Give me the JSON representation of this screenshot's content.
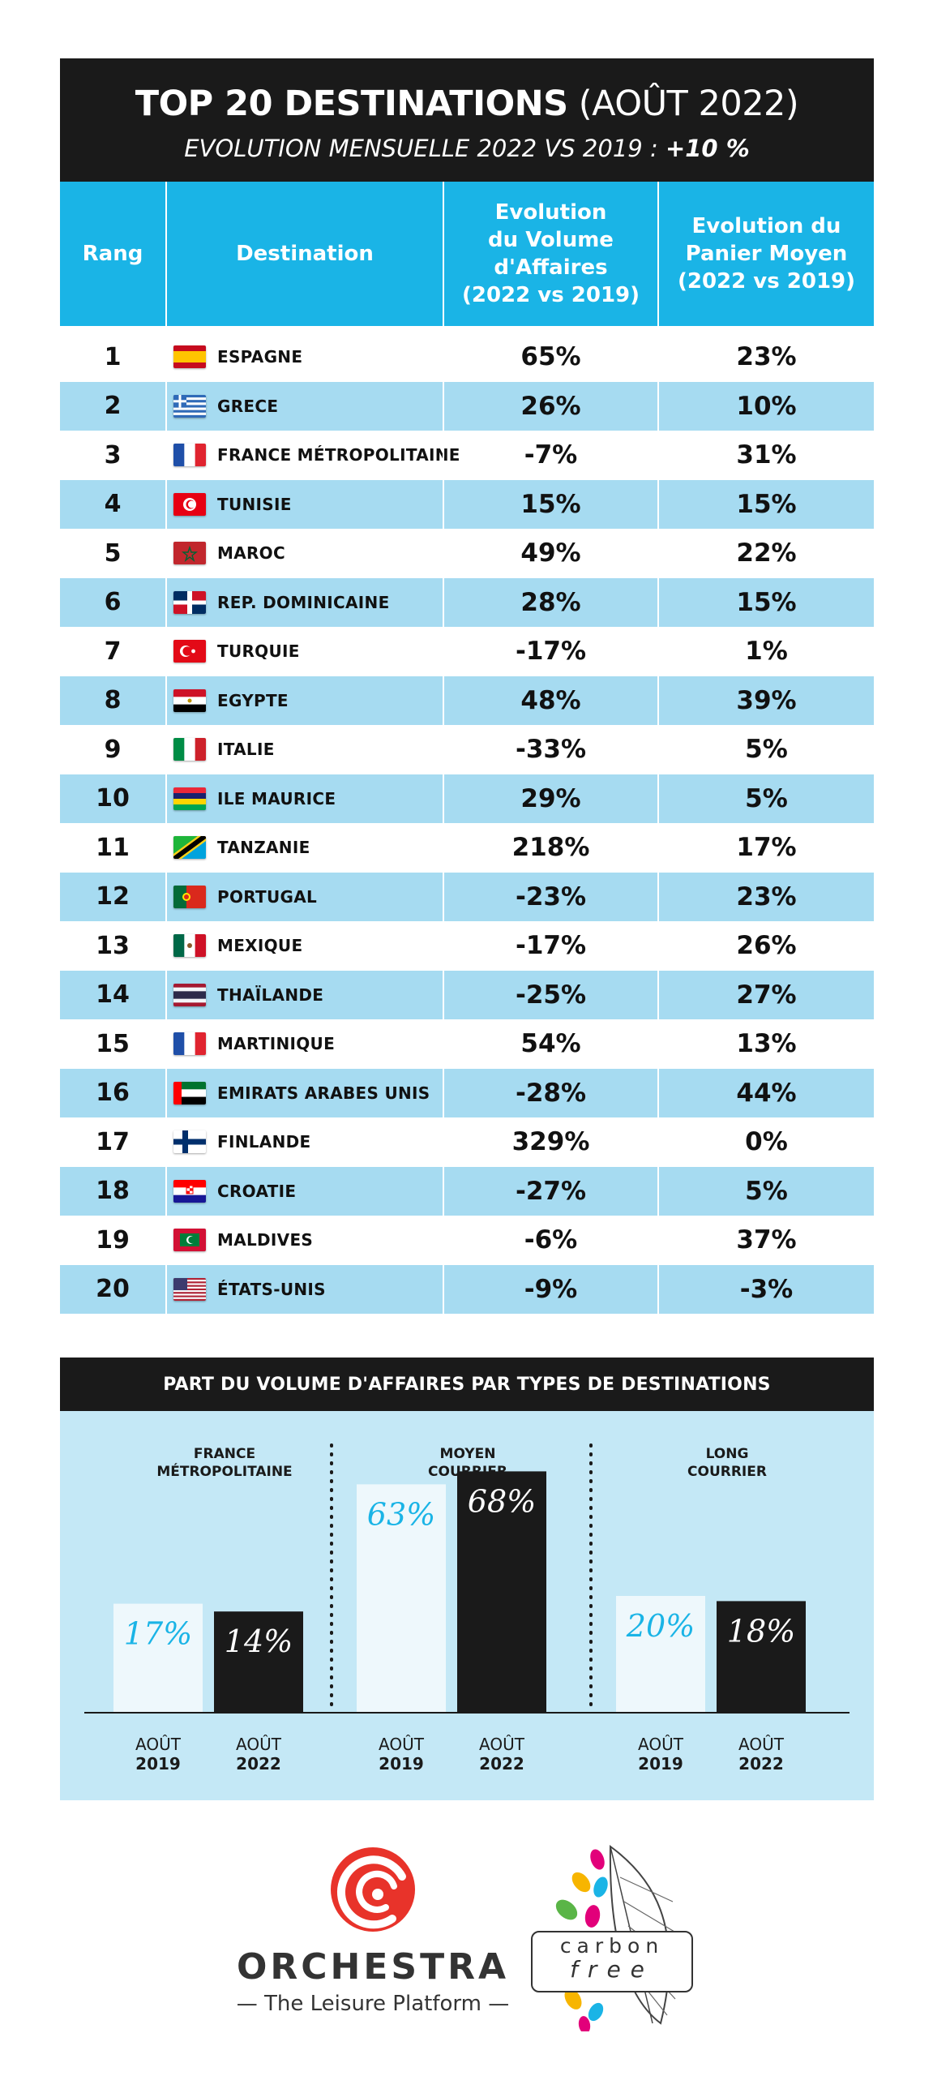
{
  "header": {
    "title_bold": "TOP 20 DESTINATIONS",
    "title_rest": "(AOÛT 2022)",
    "subtitle": "EVOLUTION MENSUELLE 2022 VS 2019 :",
    "subtitle_value": "+10 %"
  },
  "table": {
    "columns": {
      "rank": "Rang",
      "destination": "Destination",
      "volume": [
        "Evolution",
        "du Volume",
        "d'Affaires",
        "(2022 vs 2019)"
      ],
      "panier": [
        "Evolution du",
        "Panier Moyen",
        "(2022 vs 2019)"
      ]
    },
    "rows": [
      {
        "rank": "1",
        "destination": "ESPAGNE",
        "flag": "spain-flag-icon",
        "volume": "65%",
        "panier": "23%"
      },
      {
        "rank": "2",
        "destination": "GRECE",
        "flag": "greece-flag-icon",
        "volume": "26%",
        "panier": "10%"
      },
      {
        "rank": "3",
        "destination": "FRANCE MÉTROPOLITAINE",
        "flag": "france-flag-icon",
        "volume": "-7%",
        "panier": "31%"
      },
      {
        "rank": "4",
        "destination": "TUNISIE",
        "flag": "tunisia-flag-icon",
        "volume": "15%",
        "panier": "15%"
      },
      {
        "rank": "5",
        "destination": "MAROC",
        "flag": "morocco-flag-icon",
        "volume": "49%",
        "panier": "22%"
      },
      {
        "rank": "6",
        "destination": "REP. DOMINICAINE",
        "flag": "dominican-republic-flag-icon",
        "volume": "28%",
        "panier": "15%"
      },
      {
        "rank": "7",
        "destination": "TURQUIE",
        "flag": "turkey-flag-icon",
        "volume": "-17%",
        "panier": "1%"
      },
      {
        "rank": "8",
        "destination": "EGYPTE",
        "flag": "egypt-flag-icon",
        "volume": "48%",
        "panier": "39%"
      },
      {
        "rank": "9",
        "destination": "ITALIE",
        "flag": "italy-flag-icon",
        "volume": "-33%",
        "panier": "5%"
      },
      {
        "rank": "10",
        "destination": "ILE MAURICE",
        "flag": "mauritius-flag-icon",
        "volume": "29%",
        "panier": "5%"
      },
      {
        "rank": "11",
        "destination": "TANZANIE",
        "flag": "tanzania-flag-icon",
        "volume": "218%",
        "panier": "17%"
      },
      {
        "rank": "12",
        "destination": "PORTUGAL",
        "flag": "portugal-flag-icon",
        "volume": "-23%",
        "panier": "23%"
      },
      {
        "rank": "13",
        "destination": "MEXIQUE",
        "flag": "mexico-flag-icon",
        "volume": "-17%",
        "panier": "26%"
      },
      {
        "rank": "14",
        "destination": "THAÏLANDE",
        "flag": "thailand-flag-icon",
        "volume": "-25%",
        "panier": "27%"
      },
      {
        "rank": "15",
        "destination": "MARTINIQUE",
        "flag": "martinique-flag-icon",
        "volume": "54%",
        "panier": "13%"
      },
      {
        "rank": "16",
        "destination": "EMIRATS ARABES UNIS",
        "flag": "uae-flag-icon",
        "volume": "-28%",
        "panier": "44%"
      },
      {
        "rank": "17",
        "destination": "FINLANDE",
        "flag": "finland-flag-icon",
        "volume": "329%",
        "panier": "0%"
      },
      {
        "rank": "18",
        "destination": "CROATIE",
        "flag": "croatia-flag-icon",
        "volume": "-27%",
        "panier": "5%"
      },
      {
        "rank": "19",
        "destination": "MALDIVES",
        "flag": "maldives-flag-icon",
        "volume": "-6%",
        "panier": "37%"
      },
      {
        "rank": "20",
        "destination": "ÉTATS-UNIS",
        "flag": "usa-flag-icon",
        "volume": "-9%",
        "panier": "-3%"
      }
    ]
  },
  "colors": {
    "header_bg": "#1a1a1a",
    "table_head_bg": "#1ab4e6",
    "row_alt_bg": "#a6dbf1",
    "chart_panel_bg": "#c4e8f6",
    "bar_2019": "#eef8fc",
    "bar_2022": "#1a1a1a",
    "label_2019": "#1ab4e6",
    "orchestra_red": "#e8332a"
  },
  "chart_data": {
    "type": "bar",
    "title": "PART DU VOLUME D'AFFAIRES PAR TYPES DE DESTINATIONS",
    "groups": [
      {
        "name": [
          "FRANCE",
          "MÉTROPOLITAINE"
        ]
      },
      {
        "name": [
          "MOYEN",
          "COURRIER"
        ]
      },
      {
        "name": [
          "LONG",
          "COURRIER"
        ]
      }
    ],
    "x_labels": [
      {
        "month": "AOÛT",
        "year": "2019"
      },
      {
        "month": "AOÛT",
        "year": "2022"
      }
    ],
    "series": [
      {
        "values": [
          17,
          63,
          20
        ],
        "labels": [
          "17%",
          "63%",
          "20%"
        ]
      },
      {
        "values": [
          14,
          68,
          18
        ],
        "labels": [
          "14%",
          "68%",
          "18%"
        ]
      }
    ],
    "ylim": [
      0,
      100
    ],
    "grid": false,
    "legend": "none"
  },
  "logos": {
    "orchestra_name": "ORCHESTRA",
    "orchestra_tagline": "— The Leisure Platform —",
    "carbon_top": "carbon",
    "carbon_bottom": "free"
  }
}
